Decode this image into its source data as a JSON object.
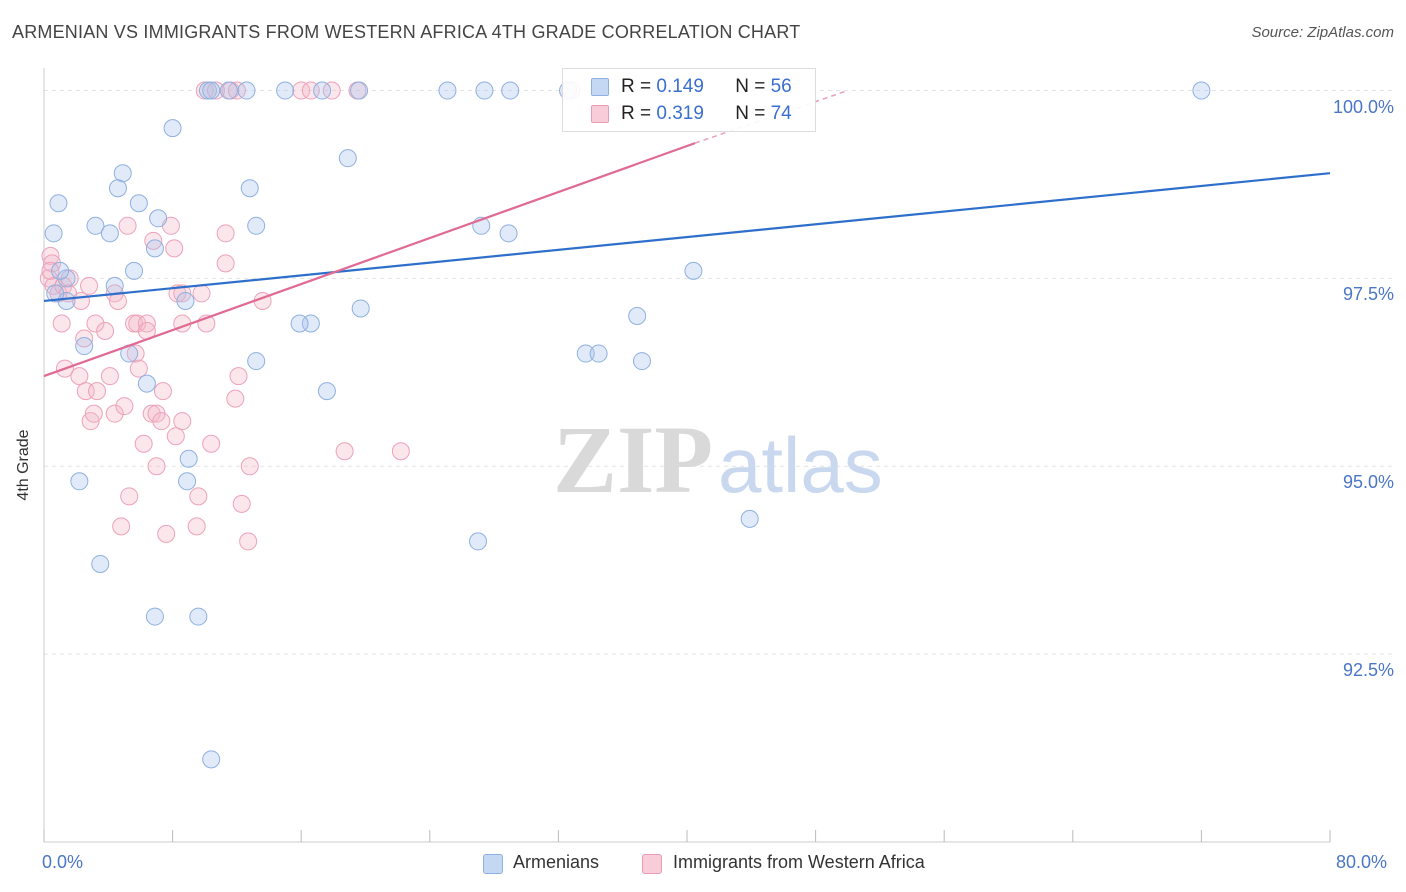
{
  "title": "ARMENIAN VS IMMIGRANTS FROM WESTERN AFRICA 4TH GRADE CORRELATION CHART",
  "source": "Source: ZipAtlas.com",
  "watermark": {
    "zip": "ZIP",
    "atlas": "atlas"
  },
  "legend": {
    "r_label": "R =",
    "n_label": "N =",
    "series1": {
      "r": "0.149",
      "n": "56"
    },
    "series2": {
      "r": "0.319",
      "n": "74"
    }
  },
  "bottom_legend": {
    "s1": "Armenians",
    "s2": "Immigrants from Western Africa"
  },
  "colors": {
    "blue": "#a9c4ea",
    "blue_line": "#2f6fcc",
    "pink": "#f4b6c8",
    "pink_line": "#e06a93",
    "tick": "#4a76c6"
  },
  "chart_data": {
    "type": "scatter",
    "title": "ARMENIAN VS IMMIGRANTS FROM WESTERN AFRICA 4TH GRADE CORRELATION CHART",
    "xlabel": "",
    "ylabel": "4th Grade",
    "xlim": [
      0,
      80
    ],
    "ylim": [
      90.0,
      100.3
    ],
    "x_tick_labels": [
      "0.0%",
      "80.0%"
    ],
    "y_ticks": [
      {
        "value": 100.0,
        "label": "100.0%"
      },
      {
        "value": 97.5,
        "label": "97.5%"
      },
      {
        "value": 95.0,
        "label": "95.0%"
      },
      {
        "value": 92.5,
        "label": "92.5%"
      }
    ],
    "series": [
      {
        "name": "Armenians",
        "r": 0.149,
        "n": 56,
        "trend": {
          "x0": 0,
          "y0": 97.2,
          "x1": 80,
          "y1": 98.9
        },
        "points": [
          [
            10.2,
            100
          ],
          [
            10.4,
            100
          ],
          [
            11.5,
            100
          ],
          [
            12.6,
            100
          ],
          [
            15,
            100
          ],
          [
            17.3,
            100
          ],
          [
            19.6,
            100
          ],
          [
            25.1,
            100
          ],
          [
            27.4,
            100
          ],
          [
            29,
            100
          ],
          [
            72,
            100
          ],
          [
            8,
            99.5
          ],
          [
            18.9,
            99.1
          ],
          [
            4.9,
            98.9
          ],
          [
            4.6,
            98.7
          ],
          [
            12.8,
            98.7
          ],
          [
            5.9,
            98.5
          ],
          [
            0.9,
            98.5
          ],
          [
            7.1,
            98.3
          ],
          [
            0.6,
            98.1
          ],
          [
            3.2,
            98.2
          ],
          [
            4.1,
            98.1
          ],
          [
            13.2,
            98.2
          ],
          [
            27.2,
            98.2
          ],
          [
            28.9,
            98.1
          ],
          [
            6.9,
            97.9
          ],
          [
            5.6,
            97.6
          ],
          [
            40.4,
            97.6
          ],
          [
            1.4,
            97.5
          ],
          [
            4.4,
            97.4
          ],
          [
            1.4,
            97.2
          ],
          [
            8.8,
            97.2
          ],
          [
            19.7,
            97.1
          ],
          [
            36.9,
            97.0
          ],
          [
            16.6,
            96.9
          ],
          [
            15.9,
            96.9
          ],
          [
            2.5,
            96.6
          ],
          [
            5.3,
            96.5
          ],
          [
            33.7,
            96.5
          ],
          [
            34.5,
            96.5
          ],
          [
            13.2,
            96.4
          ],
          [
            37.2,
            96.4
          ],
          [
            6.4,
            96.1
          ],
          [
            17.6,
            96.0
          ],
          [
            9.0,
            95.1
          ],
          [
            8.9,
            94.8
          ],
          [
            2.2,
            94.8
          ],
          [
            43.9,
            94.3
          ],
          [
            27,
            94.0
          ],
          [
            3.5,
            93.7
          ],
          [
            6.9,
            93.0
          ],
          [
            9.6,
            93.0
          ],
          [
            10.4,
            91.1
          ],
          [
            1.0,
            97.6
          ],
          [
            0.7,
            97.3
          ],
          [
            32.6,
            100
          ]
        ]
      },
      {
        "name": "Immigrants from Western Africa",
        "r": 0.319,
        "n": 74,
        "trend": {
          "x0": 0,
          "y0": 96.2,
          "x1": 40.5,
          "y1": 99.3,
          "x_dash_end": 50,
          "y_dash_end": 100.0
        },
        "points": [
          [
            10,
            100
          ],
          [
            10.7,
            100
          ],
          [
            11.6,
            100
          ],
          [
            12,
            100
          ],
          [
            16,
            100
          ],
          [
            16.6,
            100
          ],
          [
            17.9,
            100
          ],
          [
            19.5,
            100
          ],
          [
            32.8,
            100
          ],
          [
            0.4,
            97.8
          ],
          [
            0.5,
            97.7
          ],
          [
            0.3,
            97.5
          ],
          [
            0.6,
            97.4
          ],
          [
            0.9,
            97.3
          ],
          [
            1.2,
            97.4
          ],
          [
            1.6,
            97.5
          ],
          [
            2.3,
            97.2
          ],
          [
            5.2,
            98.2
          ],
          [
            6.8,
            98.0
          ],
          [
            7.9,
            98.2
          ],
          [
            8.1,
            97.9
          ],
          [
            11.3,
            98.1
          ],
          [
            11.3,
            97.7
          ],
          [
            4.4,
            97.3
          ],
          [
            4.6,
            97.2
          ],
          [
            8.3,
            97.3
          ],
          [
            8.6,
            97.3
          ],
          [
            9.8,
            97.3
          ],
          [
            13.6,
            97.2
          ],
          [
            5.6,
            96.9
          ],
          [
            5.8,
            96.9
          ],
          [
            6.4,
            96.9
          ],
          [
            6.4,
            96.8
          ],
          [
            8.6,
            96.9
          ],
          [
            10.1,
            96.9
          ],
          [
            1.1,
            96.9
          ],
          [
            2.5,
            96.7
          ],
          [
            3.2,
            96.9
          ],
          [
            3.8,
            96.8
          ],
          [
            5.7,
            96.5
          ],
          [
            1.3,
            96.3
          ],
          [
            2.2,
            96.2
          ],
          [
            5.9,
            96.3
          ],
          [
            4.1,
            96.2
          ],
          [
            12.1,
            96.2
          ],
          [
            2.6,
            96.0
          ],
          [
            3.3,
            96.0
          ],
          [
            7.4,
            96.0
          ],
          [
            11.9,
            95.9
          ],
          [
            6.7,
            95.7
          ],
          [
            7.0,
            95.7
          ],
          [
            4.4,
            95.7
          ],
          [
            5.0,
            95.8
          ],
          [
            2.9,
            95.6
          ],
          [
            3.1,
            95.7
          ],
          [
            8.6,
            95.6
          ],
          [
            8.2,
            95.4
          ],
          [
            7.3,
            95.6
          ],
          [
            10.4,
            95.3
          ],
          [
            6.2,
            95.3
          ],
          [
            18.7,
            95.2
          ],
          [
            22.2,
            95.2
          ],
          [
            12.8,
            95.0
          ],
          [
            7.0,
            95.0
          ],
          [
            5.3,
            94.6
          ],
          [
            9.6,
            94.6
          ],
          [
            12.3,
            94.5
          ],
          [
            4.8,
            94.2
          ],
          [
            7.6,
            94.1
          ],
          [
            9.5,
            94.2
          ],
          [
            12.7,
            94.0
          ],
          [
            0.4,
            97.6
          ],
          [
            1.5,
            97.3
          ],
          [
            2.8,
            97.4
          ]
        ]
      }
    ]
  }
}
